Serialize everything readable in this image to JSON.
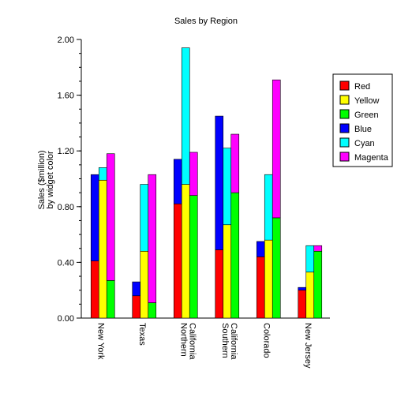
{
  "chart_data": {
    "type": "bar",
    "stacked_groups": true,
    "title": "Sales by Region",
    "ylabel_lines": [
      "Sales ($million)",
      "by widget color"
    ],
    "xlabel": "",
    "ylim": [
      0,
      2.0
    ],
    "ytick_values": [
      0,
      0.4,
      0.8,
      1.2,
      1.6,
      2.0
    ],
    "ytick_labels": [
      "0.00",
      "0.40",
      "0.80",
      "1.20",
      "1.60",
      "2.00"
    ],
    "categories": [
      [
        "New York"
      ],
      [
        "Texas"
      ],
      [
        "Northern",
        "California"
      ],
      [
        "Southern",
        "California"
      ],
      [
        "Colorado"
      ],
      [
        "New Jersey"
      ]
    ],
    "series": [
      {
        "name": "Red",
        "color": "#ff0000",
        "values": [
          0.41,
          0.16,
          0.82,
          0.49,
          0.44,
          0.2
        ]
      },
      {
        "name": "Yellow",
        "color": "#ffff00",
        "values": [
          0.99,
          0.48,
          0.96,
          0.67,
          0.56,
          0.33
        ]
      },
      {
        "name": "Green",
        "color": "#00ff00",
        "values": [
          0.27,
          0.11,
          0.88,
          0.9,
          0.72,
          0.48
        ]
      },
      {
        "name": "Blue",
        "color": "#0000ff",
        "values": [
          0.62,
          0.1,
          0.32,
          0.96,
          0.11,
          0.02
        ]
      },
      {
        "name": "Cyan",
        "color": "#00ffff",
        "values": [
          0.09,
          0.48,
          0.98,
          0.55,
          0.47,
          0.19
        ]
      },
      {
        "name": "Magenta",
        "color": "#ff00ff",
        "values": [
          0.91,
          0.92,
          0.31,
          0.42,
          0.99,
          0.04
        ]
      }
    ],
    "stacks": [
      {
        "offset": -1,
        "series": [
          "Red",
          "Blue"
        ]
      },
      {
        "offset": 0,
        "series": [
          "Yellow",
          "Cyan"
        ]
      },
      {
        "offset": 1,
        "series": [
          "Green",
          "Magenta"
        ]
      }
    ],
    "legend": {
      "placement": "right",
      "items": [
        "Red",
        "Yellow",
        "Green",
        "Blue",
        "Cyan",
        "Magenta"
      ]
    },
    "grid": false
  }
}
